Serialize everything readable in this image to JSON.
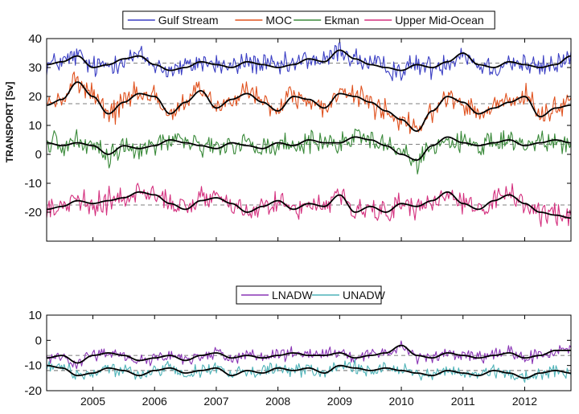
{
  "chart_data": [
    {
      "type": "line",
      "ylabel": "TRANSPORT [Sv]",
      "ylim": [
        -30,
        40
      ],
      "yticks": [
        -20,
        -10,
        0,
        10,
        20,
        30,
        40
      ],
      "xlim": [
        2004.25,
        2012.75
      ],
      "xticks": [
        2005,
        2006,
        2007,
        2008,
        2009,
        2010,
        2011,
        2012
      ],
      "legend_position": "top-center",
      "grid": false,
      "series": [
        {
          "name": "Gulf Stream",
          "color": "#3b3fc4",
          "mean": 31.5,
          "x": [
            2004.25,
            2004.5,
            2004.75,
            2005.0,
            2005.25,
            2005.5,
            2005.75,
            2006.0,
            2006.25,
            2006.5,
            2006.75,
            2007.0,
            2007.25,
            2007.5,
            2007.75,
            2008.0,
            2008.25,
            2008.5,
            2008.75,
            2009.0,
            2009.25,
            2009.5,
            2009.75,
            2010.0,
            2010.25,
            2010.5,
            2010.75,
            2011.0,
            2011.25,
            2011.5,
            2011.75,
            2012.0,
            2012.25,
            2012.5,
            2012.75
          ],
          "values": [
            31,
            32,
            34,
            30,
            31,
            33,
            34,
            31,
            29,
            30,
            32,
            31,
            30,
            32,
            31,
            30,
            31,
            33,
            32,
            36,
            33,
            31,
            30,
            29,
            31,
            30,
            32,
            35,
            31,
            30,
            32,
            31,
            30,
            31,
            34
          ]
        },
        {
          "name": "MOC",
          "color": "#e0521f",
          "mean": 17.5,
          "x": [
            2004.25,
            2004.5,
            2004.75,
            2005.0,
            2005.25,
            2005.5,
            2005.75,
            2006.0,
            2006.25,
            2006.5,
            2006.75,
            2007.0,
            2007.25,
            2007.5,
            2007.75,
            2008.0,
            2008.25,
            2008.5,
            2008.75,
            2009.0,
            2009.25,
            2009.5,
            2009.75,
            2010.0,
            2010.25,
            2010.5,
            2010.75,
            2011.0,
            2011.25,
            2011.5,
            2011.75,
            2012.0,
            2012.25,
            2012.5,
            2012.75
          ],
          "values": [
            17,
            19,
            25,
            20,
            14,
            18,
            21,
            20,
            14,
            18,
            22,
            16,
            19,
            21,
            18,
            15,
            20,
            19,
            16,
            21,
            20,
            18,
            15,
            12,
            8,
            15,
            20,
            18,
            14,
            16,
            18,
            20,
            13,
            16,
            17
          ]
        },
        {
          "name": "Ekman",
          "color": "#3a8a3a",
          "mean": 3.5,
          "x": [
            2004.25,
            2004.5,
            2004.75,
            2005.0,
            2005.25,
            2005.5,
            2005.75,
            2006.0,
            2006.25,
            2006.5,
            2006.75,
            2007.0,
            2007.25,
            2007.5,
            2007.75,
            2008.0,
            2008.25,
            2008.5,
            2008.75,
            2009.0,
            2009.25,
            2009.5,
            2009.75,
            2010.0,
            2010.25,
            2010.5,
            2010.75,
            2011.0,
            2011.25,
            2011.5,
            2011.75,
            2012.0,
            2012.25,
            2012.5,
            2012.75
          ],
          "values": [
            4,
            3,
            4,
            3,
            0,
            3,
            2,
            3,
            5,
            4,
            3,
            2,
            4,
            3,
            2,
            4,
            3,
            5,
            4,
            4,
            6,
            5,
            3,
            0,
            -2,
            3,
            6,
            4,
            3,
            4,
            5,
            3,
            4,
            5,
            4
          ]
        },
        {
          "name": "Upper Mid-Ocean",
          "color": "#d4317f",
          "mean": -17.5,
          "x": [
            2004.25,
            2004.5,
            2004.75,
            2005.0,
            2005.25,
            2005.5,
            2005.75,
            2006.0,
            2006.25,
            2006.5,
            2006.75,
            2007.0,
            2007.25,
            2007.5,
            2007.75,
            2008.0,
            2008.25,
            2008.5,
            2008.75,
            2009.0,
            2009.25,
            2009.5,
            2009.75,
            2010.0,
            2010.25,
            2010.5,
            2010.75,
            2011.0,
            2011.25,
            2011.5,
            2011.75,
            2012.0,
            2012.25,
            2012.5,
            2012.75
          ],
          "values": [
            -19,
            -18,
            -16,
            -17,
            -16,
            -15,
            -13,
            -14,
            -17,
            -19,
            -16,
            -15,
            -17,
            -20,
            -18,
            -16,
            -19,
            -17,
            -18,
            -14,
            -20,
            -18,
            -20,
            -17,
            -18,
            -16,
            -13,
            -17,
            -19,
            -16,
            -14,
            -17,
            -20,
            -21,
            -22
          ]
        }
      ]
    },
    {
      "type": "line",
      "ylim": [
        -20,
        10
      ],
      "yticks": [
        -20,
        -10,
        0,
        10
      ],
      "xlim": [
        2004.25,
        2012.75
      ],
      "xticks": [
        2005,
        2006,
        2007,
        2008,
        2009,
        2010,
        2011,
        2012
      ],
      "xtick_labels": [
        "2005",
        "2006",
        "2007",
        "2008",
        "2009",
        "2010",
        "2011",
        "2012"
      ],
      "legend_position": "top-center",
      "grid": false,
      "series": [
        {
          "name": "LNADW",
          "color": "#8a35b5",
          "mean": -6,
          "x": [
            2004.25,
            2004.5,
            2004.75,
            2005.0,
            2005.25,
            2005.5,
            2005.75,
            2006.0,
            2006.25,
            2006.5,
            2006.75,
            2007.0,
            2007.25,
            2007.5,
            2007.75,
            2008.0,
            2008.25,
            2008.5,
            2008.75,
            2009.0,
            2009.25,
            2009.5,
            2009.75,
            2010.0,
            2010.25,
            2010.5,
            2010.75,
            2011.0,
            2011.25,
            2011.5,
            2011.75,
            2012.0,
            2012.25,
            2012.5,
            2012.75
          ],
          "values": [
            -7,
            -6,
            -9,
            -6,
            -5,
            -6,
            -8,
            -7,
            -6,
            -8,
            -6,
            -5,
            -7,
            -6,
            -7,
            -6,
            -5,
            -6,
            -6,
            -5,
            -7,
            -6,
            -5,
            -2,
            -6,
            -7,
            -5,
            -6,
            -7,
            -6,
            -5,
            -7,
            -6,
            -4,
            -4
          ]
        },
        {
          "name": "UNADW",
          "color": "#4fb3b8",
          "mean": -12,
          "x": [
            2004.25,
            2004.5,
            2004.75,
            2005.0,
            2005.25,
            2005.5,
            2005.75,
            2006.0,
            2006.25,
            2006.5,
            2006.75,
            2007.0,
            2007.25,
            2007.5,
            2007.75,
            2008.0,
            2008.25,
            2008.5,
            2008.75,
            2009.0,
            2009.25,
            2009.5,
            2009.75,
            2010.0,
            2010.25,
            2010.5,
            2010.75,
            2011.0,
            2011.25,
            2011.5,
            2011.75,
            2012.0,
            2012.25,
            2012.5,
            2012.75
          ],
          "values": [
            -10,
            -11,
            -14,
            -13,
            -11,
            -12,
            -14,
            -12,
            -11,
            -13,
            -12,
            -11,
            -14,
            -12,
            -13,
            -11,
            -12,
            -11,
            -13,
            -10,
            -11,
            -12,
            -11,
            -12,
            -13,
            -14,
            -12,
            -13,
            -14,
            -12,
            -13,
            -15,
            -13,
            -12,
            -13
          ]
        }
      ]
    }
  ]
}
